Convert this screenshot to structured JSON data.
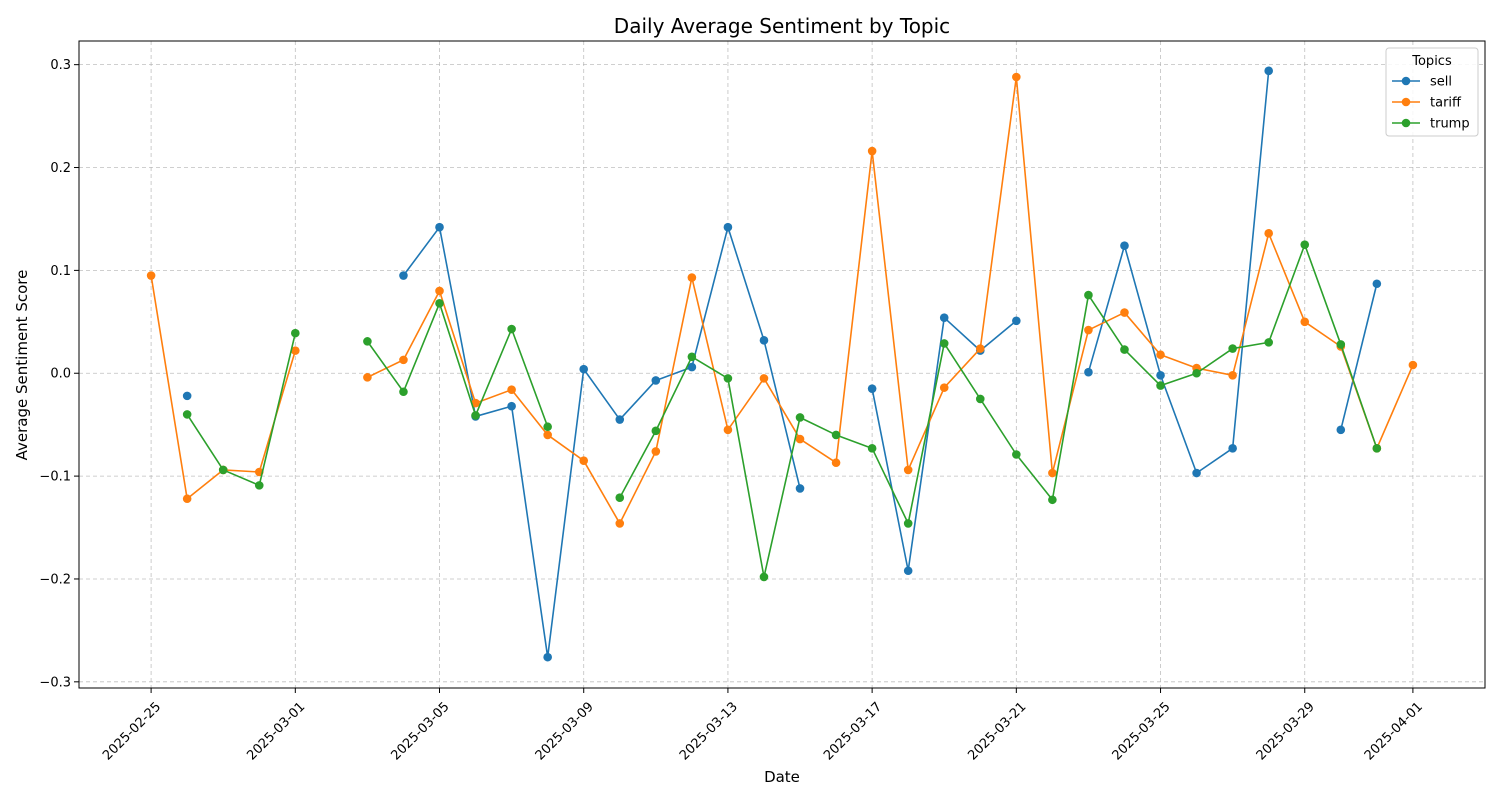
{
  "chart_data": {
    "type": "line",
    "title": "Daily Average Sentiment by Topic",
    "xlabel": "Date",
    "ylabel": "Average Sentiment Score",
    "xlim": [
      "2025-02-23",
      "2025-04-03"
    ],
    "ylim": [
      -0.306,
      0.323
    ],
    "grid": true,
    "legend": {
      "title": "Topics",
      "placement": "top-right"
    },
    "x_ticks": [
      "2025-02-25",
      "2025-03-01",
      "2025-03-05",
      "2025-03-09",
      "2025-03-13",
      "2025-03-17",
      "2025-03-21",
      "2025-03-25",
      "2025-03-29",
      "2025-04-01"
    ],
    "y_ticks": [
      -0.3,
      -0.2,
      -0.1,
      0.0,
      0.1,
      0.2,
      0.3
    ],
    "y_tick_labels": [
      "−0.3",
      "−0.2",
      "−0.1",
      "0.0",
      "0.1",
      "0.2",
      "0.3"
    ],
    "series": [
      {
        "name": "sell",
        "color": "#1f77b4",
        "points": [
          [
            "2025-02-26",
            -0.022
          ],
          [
            "2025-03-04",
            0.095
          ],
          [
            "2025-03-05",
            0.142
          ],
          [
            "2025-03-06",
            -0.042
          ],
          [
            "2025-03-07",
            -0.032
          ],
          [
            "2025-03-08",
            -0.276
          ],
          [
            "2025-03-09",
            0.004
          ],
          [
            "2025-03-10",
            -0.045
          ],
          [
            "2025-03-11",
            -0.007
          ],
          [
            "2025-03-12",
            0.006
          ],
          [
            "2025-03-13",
            0.142
          ],
          [
            "2025-03-14",
            0.032
          ],
          [
            "2025-03-15",
            -0.112
          ],
          [
            "2025-03-17",
            -0.015
          ],
          [
            "2025-03-18",
            -0.192
          ],
          [
            "2025-03-19",
            0.054
          ],
          [
            "2025-03-20",
            0.022
          ],
          [
            "2025-03-21",
            0.051
          ],
          [
            "2025-03-23",
            0.001
          ],
          [
            "2025-03-24",
            0.124
          ],
          [
            "2025-03-25",
            -0.002
          ],
          [
            "2025-03-26",
            -0.097
          ],
          [
            "2025-03-27",
            -0.073
          ],
          [
            "2025-03-28",
            0.294
          ],
          [
            "2025-03-30",
            -0.055
          ],
          [
            "2025-03-31",
            0.087
          ]
        ]
      },
      {
        "name": "tariff",
        "color": "#ff7f0e",
        "points": [
          [
            "2025-02-25",
            0.095
          ],
          [
            "2025-02-26",
            -0.122
          ],
          [
            "2025-02-27",
            -0.094
          ],
          [
            "2025-02-28",
            -0.096
          ],
          [
            "2025-03-01",
            0.022
          ],
          [
            "2025-03-03",
            -0.004
          ],
          [
            "2025-03-04",
            0.013
          ],
          [
            "2025-03-05",
            0.08
          ],
          [
            "2025-03-06",
            -0.029
          ],
          [
            "2025-03-07",
            -0.016
          ],
          [
            "2025-03-08",
            -0.06
          ],
          [
            "2025-03-09",
            -0.085
          ],
          [
            "2025-03-10",
            -0.146
          ],
          [
            "2025-03-11",
            -0.076
          ],
          [
            "2025-03-12",
            0.093
          ],
          [
            "2025-03-13",
            -0.055
          ],
          [
            "2025-03-14",
            -0.005
          ],
          [
            "2025-03-15",
            -0.064
          ],
          [
            "2025-03-16",
            -0.087
          ],
          [
            "2025-03-17",
            0.216
          ],
          [
            "2025-03-18",
            -0.094
          ],
          [
            "2025-03-19",
            -0.014
          ],
          [
            "2025-03-20",
            0.024
          ],
          [
            "2025-03-21",
            0.288
          ],
          [
            "2025-03-22",
            -0.097
          ],
          [
            "2025-03-23",
            0.042
          ],
          [
            "2025-03-24",
            0.059
          ],
          [
            "2025-03-25",
            0.018
          ],
          [
            "2025-03-26",
            0.005
          ],
          [
            "2025-03-27",
            -0.002
          ],
          [
            "2025-03-28",
            0.136
          ],
          [
            "2025-03-29",
            0.05
          ],
          [
            "2025-03-30",
            0.026
          ],
          [
            "2025-03-31",
            -0.073
          ],
          [
            "2025-04-01",
            0.008
          ]
        ]
      },
      {
        "name": "trump",
        "color": "#2ca02c",
        "points": [
          [
            "2025-02-26",
            -0.04
          ],
          [
            "2025-02-27",
            -0.094
          ],
          [
            "2025-02-28",
            -0.109
          ],
          [
            "2025-03-01",
            0.039
          ],
          [
            "2025-03-03",
            0.031
          ],
          [
            "2025-03-04",
            -0.018
          ],
          [
            "2025-03-05",
            0.068
          ],
          [
            "2025-03-06",
            -0.041
          ],
          [
            "2025-03-07",
            0.043
          ],
          [
            "2025-03-08",
            -0.052
          ],
          [
            "2025-03-10",
            -0.121
          ],
          [
            "2025-03-11",
            -0.056
          ],
          [
            "2025-03-12",
            0.016
          ],
          [
            "2025-03-13",
            -0.005
          ],
          [
            "2025-03-14",
            -0.198
          ],
          [
            "2025-03-15",
            -0.043
          ],
          [
            "2025-03-16",
            -0.06
          ],
          [
            "2025-03-17",
            -0.073
          ],
          [
            "2025-03-18",
            -0.146
          ],
          [
            "2025-03-19",
            0.029
          ],
          [
            "2025-03-20",
            -0.025
          ],
          [
            "2025-03-21",
            -0.079
          ],
          [
            "2025-03-22",
            -0.123
          ],
          [
            "2025-03-23",
            0.076
          ],
          [
            "2025-03-24",
            0.023
          ],
          [
            "2025-03-25",
            -0.012
          ],
          [
            "2025-03-26",
            0.0
          ],
          [
            "2025-03-27",
            0.024
          ],
          [
            "2025-03-28",
            0.03
          ],
          [
            "2025-03-29",
            0.125
          ],
          [
            "2025-03-30",
            0.028
          ],
          [
            "2025-03-31",
            -0.073
          ]
        ]
      }
    ]
  }
}
